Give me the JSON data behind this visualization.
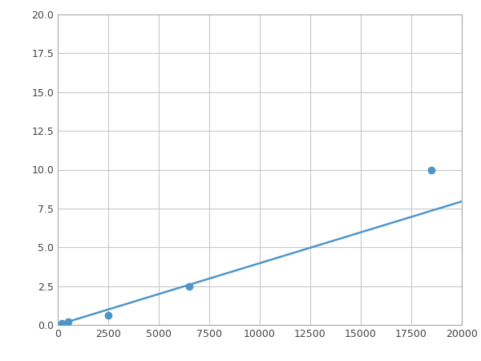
{
  "x_points": [
    200,
    500,
    2500,
    6500,
    18500
  ],
  "y_points": [
    0.1,
    0.2,
    0.6,
    2.5,
    10.0
  ],
  "line_color": "#4d96c9",
  "marker_color": "#4d96c9",
  "marker_size": 6,
  "xlim": [
    0,
    20000
  ],
  "ylim": [
    0,
    20.0
  ],
  "xticks": [
    0,
    2500,
    5000,
    7500,
    10000,
    12500,
    15000,
    17500,
    20000
  ],
  "yticks": [
    0.0,
    2.5,
    5.0,
    7.5,
    10.0,
    12.5,
    15.0,
    17.5,
    20.0
  ],
  "grid_color": "#c8c8c8",
  "background_color": "#ffffff",
  "spine_color": "#aaaaaa",
  "figsize": [
    6.0,
    4.5
  ],
  "dpi": 100
}
